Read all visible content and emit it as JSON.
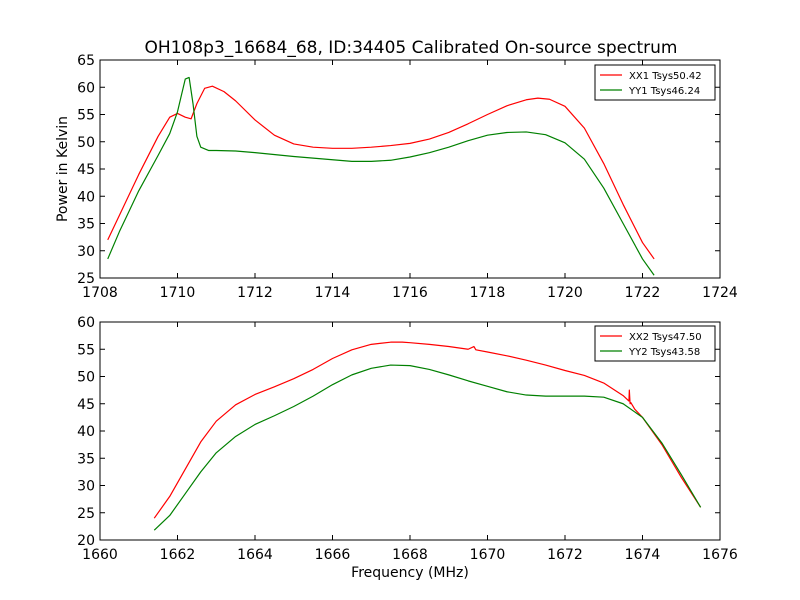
{
  "figure": {
    "title": "OH108p3_16684_68, ID:34405 Calibrated On-source spectrum"
  },
  "chart_data": [
    {
      "type": "line",
      "ylabel": "Power in Kelvin",
      "xlabel": "",
      "xlim": [
        1708,
        1724
      ],
      "ylim": [
        25,
        65
      ],
      "xticks": [
        1708,
        1710,
        1712,
        1714,
        1716,
        1718,
        1720,
        1722,
        1724
      ],
      "yticks": [
        25,
        30,
        35,
        40,
        45,
        50,
        55,
        60,
        65
      ],
      "legend": "top-right",
      "grid": false,
      "series": [
        {
          "name": "XX1 Tsys50.42",
          "color": "#ff0000",
          "x": [
            1708.2,
            1708.5,
            1709.0,
            1709.5,
            1709.8,
            1710.0,
            1710.2,
            1710.35,
            1710.5,
            1710.7,
            1710.9,
            1711.2,
            1711.5,
            1712.0,
            1712.5,
            1713.0,
            1713.5,
            1714.0,
            1714.5,
            1715.0,
            1715.5,
            1716.0,
            1716.5,
            1717.0,
            1717.5,
            1718.0,
            1718.5,
            1719.0,
            1719.3,
            1719.6,
            1720.0,
            1720.5,
            1721.0,
            1721.5,
            1722.0,
            1722.3
          ],
          "y": [
            32.0,
            36.5,
            44.0,
            51.0,
            54.5,
            55.2,
            54.5,
            54.2,
            57.0,
            59.8,
            60.2,
            59.2,
            57.5,
            54.0,
            51.2,
            49.6,
            49.0,
            48.8,
            48.8,
            49.0,
            49.3,
            49.7,
            50.5,
            51.7,
            53.3,
            55.0,
            56.6,
            57.7,
            58.0,
            57.8,
            56.5,
            52.5,
            46.0,
            38.5,
            31.5,
            28.5
          ]
        },
        {
          "name": "YY1 Tsys46.24",
          "color": "#008000",
          "x": [
            1708.2,
            1708.5,
            1709.0,
            1709.5,
            1709.8,
            1710.0,
            1710.1,
            1710.2,
            1710.3,
            1710.4,
            1710.5,
            1710.6,
            1710.8,
            1711.0,
            1711.5,
            1712.0,
            1713.0,
            1714.0,
            1714.5,
            1715.0,
            1715.5,
            1716.0,
            1716.5,
            1717.0,
            1717.5,
            1718.0,
            1718.5,
            1719.0,
            1719.5,
            1720.0,
            1720.5,
            1721.0,
            1721.5,
            1722.0,
            1722.3
          ],
          "y": [
            28.5,
            33.5,
            41.0,
            47.5,
            51.5,
            55.5,
            58.5,
            61.5,
            61.8,
            57.0,
            51.0,
            49.0,
            48.4,
            48.4,
            48.3,
            48.0,
            47.3,
            46.7,
            46.4,
            46.4,
            46.6,
            47.2,
            48.0,
            49.0,
            50.2,
            51.2,
            51.7,
            51.8,
            51.3,
            49.8,
            46.8,
            41.5,
            35.0,
            28.5,
            25.5
          ]
        }
      ]
    },
    {
      "type": "line",
      "ylabel": "",
      "xlabel": "Frequency (MHz)",
      "xlim": [
        1660,
        1676
      ],
      "ylim": [
        20,
        60
      ],
      "xticks": [
        1660,
        1662,
        1664,
        1666,
        1668,
        1670,
        1672,
        1674,
        1676
      ],
      "yticks": [
        20,
        25,
        30,
        35,
        40,
        45,
        50,
        55,
        60
      ],
      "legend": "top-right",
      "grid": false,
      "series": [
        {
          "name": "XX2 Tsys47.50",
          "color": "#ff0000",
          "x": [
            1661.4,
            1661.8,
            1662.2,
            1662.6,
            1663.0,
            1663.5,
            1664.0,
            1664.5,
            1665.0,
            1665.5,
            1666.0,
            1666.5,
            1667.0,
            1667.5,
            1667.8,
            1668.0,
            1668.5,
            1669.0,
            1669.5,
            1669.65,
            1669.7,
            1670.0,
            1670.5,
            1671.0,
            1671.5,
            1672.0,
            1672.5,
            1673.0,
            1673.5,
            1673.65,
            1673.66,
            1673.68,
            1673.7,
            1673.8,
            1674.0,
            1674.5,
            1675.0,
            1675.5
          ],
          "y": [
            24.0,
            28.0,
            33.0,
            38.0,
            41.8,
            44.8,
            46.7,
            48.1,
            49.6,
            51.3,
            53.3,
            54.9,
            55.9,
            56.3,
            56.3,
            56.2,
            55.9,
            55.5,
            55.0,
            55.5,
            54.9,
            54.5,
            53.8,
            53.0,
            52.1,
            51.1,
            50.2,
            48.8,
            46.5,
            45.5,
            47.5,
            45.0,
            45.2,
            44.0,
            42.5,
            37.5,
            31.5,
            26.0
          ]
        },
        {
          "name": "YY2 Tsys43.58",
          "color": "#008000",
          "x": [
            1661.4,
            1661.8,
            1662.2,
            1662.6,
            1663.0,
            1663.5,
            1664.0,
            1664.5,
            1665.0,
            1665.5,
            1666.0,
            1666.5,
            1667.0,
            1667.5,
            1668.0,
            1668.5,
            1669.0,
            1669.5,
            1670.0,
            1670.5,
            1671.0,
            1671.5,
            1672.0,
            1672.5,
            1673.0,
            1673.5,
            1674.0,
            1674.5,
            1675.0,
            1675.5
          ],
          "y": [
            21.8,
            24.5,
            28.5,
            32.5,
            36.0,
            39.0,
            41.2,
            42.8,
            44.5,
            46.4,
            48.5,
            50.3,
            51.5,
            52.1,
            52.0,
            51.3,
            50.3,
            49.2,
            48.2,
            47.2,
            46.6,
            46.4,
            46.4,
            46.4,
            46.2,
            45.0,
            42.5,
            37.8,
            32.0,
            26.0
          ]
        }
      ]
    }
  ]
}
